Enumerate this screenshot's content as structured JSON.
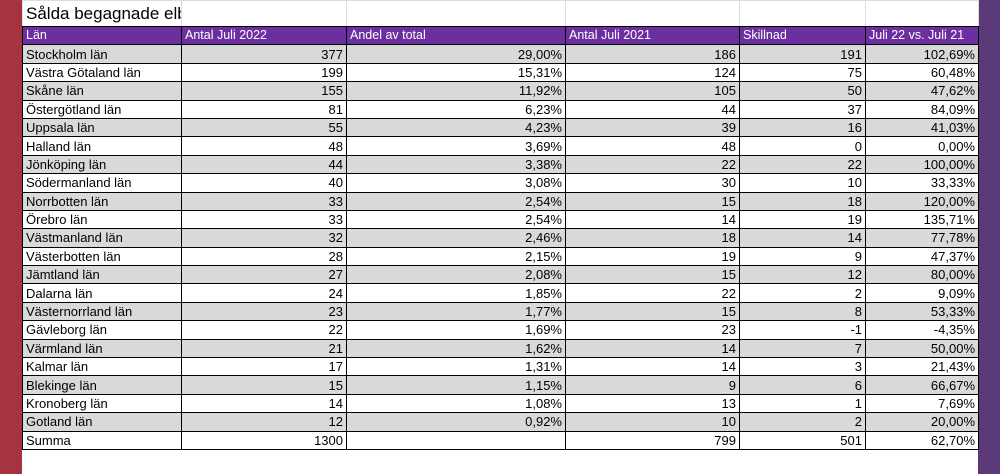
{
  "header": {
    "title": "Sålda begagnade elbilar Sverige."
  },
  "table": {
    "columns": [
      "Län",
      "Antal Juli 2022",
      "Andel av total",
      "Antal Juli 2021",
      "Skillnad",
      "Juli 22 vs. Juli 21"
    ],
    "rows": [
      [
        "Stockholm län",
        "377",
        "29,00%",
        "186",
        "191",
        "102,69%"
      ],
      [
        "Västra Götaland län",
        "199",
        "15,31%",
        "124",
        "75",
        "60,48%"
      ],
      [
        "Skåne län",
        "155",
        "11,92%",
        "105",
        "50",
        "47,62%"
      ],
      [
        "Östergötland län",
        "81",
        "6,23%",
        "44",
        "37",
        "84,09%"
      ],
      [
        "Uppsala län",
        "55",
        "4,23%",
        "39",
        "16",
        "41,03%"
      ],
      [
        "Halland län",
        "48",
        "3,69%",
        "48",
        "0",
        "0,00%"
      ],
      [
        "Jönköping län",
        "44",
        "3,38%",
        "22",
        "22",
        "100,00%"
      ],
      [
        "Södermanland län",
        "40",
        "3,08%",
        "30",
        "10",
        "33,33%"
      ],
      [
        "Norrbotten län",
        "33",
        "2,54%",
        "15",
        "18",
        "120,00%"
      ],
      [
        "Örebro län",
        "33",
        "2,54%",
        "14",
        "19",
        "135,71%"
      ],
      [
        "Västmanland län",
        "32",
        "2,46%",
        "18",
        "14",
        "77,78%"
      ],
      [
        "Västerbotten län",
        "28",
        "2,15%",
        "19",
        "9",
        "47,37%"
      ],
      [
        "Jämtland län",
        "27",
        "2,08%",
        "15",
        "12",
        "80,00%"
      ],
      [
        "Dalarna län",
        "24",
        "1,85%",
        "22",
        "2",
        "9,09%"
      ],
      [
        "Västernorrland län",
        "23",
        "1,77%",
        "15",
        "8",
        "53,33%"
      ],
      [
        "Gävleborg län",
        "22",
        "1,69%",
        "23",
        "-1",
        "-4,35%"
      ],
      [
        "Värmland län",
        "21",
        "1,62%",
        "14",
        "7",
        "50,00%"
      ],
      [
        "Kalmar län",
        "17",
        "1,31%",
        "14",
        "3",
        "21,43%"
      ],
      [
        "Blekinge län",
        "15",
        "1,15%",
        "9",
        "6",
        "66,67%"
      ],
      [
        "Kronoberg län",
        "14",
        "1,08%",
        "13",
        "1",
        "7,69%"
      ],
      [
        "Gotland län",
        "12",
        "0,92%",
        "10",
        "2",
        "20,00%"
      ],
      [
        "Summa",
        "1300",
        "",
        "799",
        "501",
        "62,70%"
      ]
    ]
  }
}
